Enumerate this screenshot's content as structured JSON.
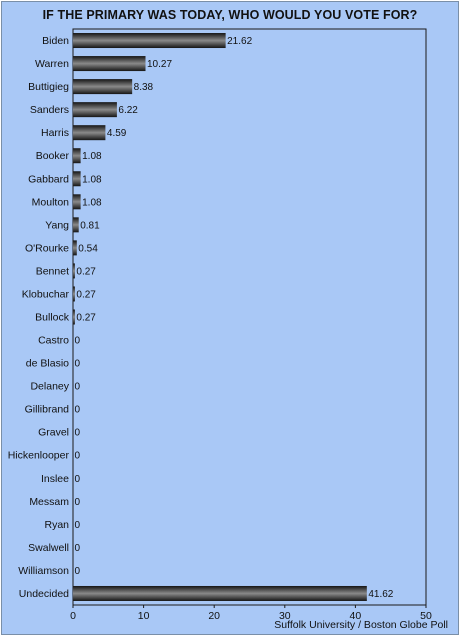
{
  "title": "IF THE PRIMARY WAS TODAY, WHO WOULD YOU VOTE FOR?",
  "source": "Suffolk University / Boston Globe Poll",
  "colors": {
    "background": "#a9c8f6",
    "plot_border": "#1a1a1a",
    "bar_dark": "#151515",
    "bar_light": "#8a8a8a"
  },
  "chart_data": {
    "type": "bar",
    "orientation": "horizontal",
    "title": "IF THE PRIMARY WAS TODAY, WHO WOULD YOU VOTE FOR?",
    "xlabel": "",
    "ylabel": "",
    "xlim": [
      0,
      50
    ],
    "x_ticks": [
      0,
      10,
      20,
      30,
      40,
      50
    ],
    "grid": false,
    "legend": "none",
    "categories": [
      "Biden",
      "Warren",
      "Buttigieg",
      "Sanders",
      "Harris",
      "Booker",
      "Gabbard",
      "Moulton",
      "Yang",
      "O'Rourke",
      "Bennet",
      "Klobuchar",
      "Bullock",
      "Castro",
      "de Blasio",
      "Delaney",
      "Gillibrand",
      "Gravel",
      "Hickenlooper",
      "Inslee",
      "Messam",
      "Ryan",
      "Swalwell",
      "Williamson",
      "Undecided"
    ],
    "values": [
      21.62,
      10.27,
      8.38,
      6.22,
      4.59,
      1.08,
      1.08,
      1.08,
      0.81,
      0.54,
      0.27,
      0.27,
      0.27,
      0,
      0,
      0,
      0,
      0,
      0,
      0,
      0,
      0,
      0,
      0,
      41.62
    ]
  }
}
